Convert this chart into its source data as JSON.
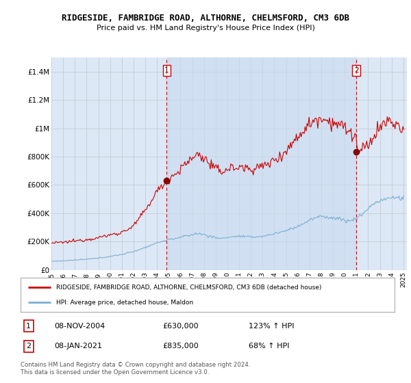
{
  "title": "RIDGESIDE, FAMBRIDGE ROAD, ALTHORNE, CHELMSFORD, CM3 6DB",
  "subtitle": "Price paid vs. HM Land Registry's House Price Index (HPI)",
  "ylim": [
    0,
    1500000
  ],
  "yticks": [
    0,
    200000,
    400000,
    600000,
    800000,
    1000000,
    1200000,
    1400000
  ],
  "ytick_labels": [
    "£0",
    "£200K",
    "£400K",
    "£600K",
    "£800K",
    "£1M",
    "£1.2M",
    "£1.4M"
  ],
  "background_color": "#ffffff",
  "plot_bg_color": "#dce8f5",
  "shaded_region_color": "#c8dcf0",
  "grid_color": "#c0c8d0",
  "red_line_color": "#cc0000",
  "blue_line_color": "#7bafd4",
  "sale1_date": "08-NOV-2004",
  "sale1_price": 630000,
  "sale1_hpi": "123%",
  "sale2_date": "08-JAN-2021",
  "sale2_price": 835000,
  "sale2_hpi": "68%",
  "legend_red_label": "RIDGESIDE, FAMBRIDGE ROAD, ALTHORNE, CHELMSFORD, CM3 6DB (detached house)",
  "legend_blue_label": "HPI: Average price, detached house, Maldon",
  "footnote": "Contains HM Land Registry data © Crown copyright and database right 2024.\nThis data is licensed under the Open Government Licence v3.0.",
  "sale1_x": 2004.833,
  "sale1_y": 630000,
  "sale2_x": 2021.0,
  "sale2_y": 835000,
  "dashed_line1_x": 2004.833,
  "dashed_line2_x": 2021.0,
  "xlim_min": 1995.0,
  "xlim_max": 2025.3,
  "xtick_years": [
    1995,
    1996,
    1997,
    1998,
    1999,
    2000,
    2001,
    2002,
    2003,
    2004,
    2005,
    2006,
    2007,
    2008,
    2009,
    2010,
    2011,
    2012,
    2013,
    2014,
    2015,
    2016,
    2017,
    2018,
    2019,
    2020,
    2021,
    2022,
    2023,
    2024,
    2025
  ]
}
